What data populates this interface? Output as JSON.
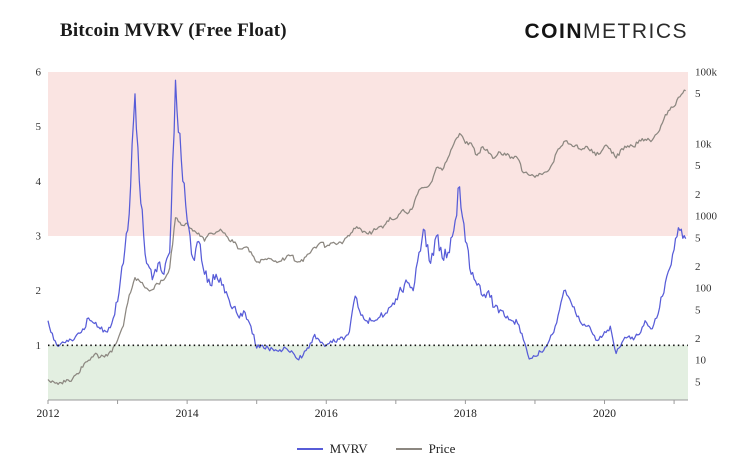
{
  "header": {
    "title": "Bitcoin MVRV (Free Float)",
    "logo_bold": "COIN",
    "logo_light": "METRICS"
  },
  "legend": [
    {
      "label": "MVRV",
      "color": "#575cd8"
    },
    {
      "label": "Price",
      "color": "#8c8780"
    }
  ],
  "chart_data": {
    "type": "line",
    "title": "Bitcoin MVRV (Free Float)",
    "x_domain": [
      2012,
      2021.2
    ],
    "x_ticks": [
      2012,
      2014,
      2016,
      2018,
      2020
    ],
    "x": {
      "start": 2012,
      "step": 0.0833333,
      "count": 111,
      "unit": "decimal-year, monthly"
    },
    "left_axis": {
      "range": [
        0,
        6
      ],
      "ticks": [
        1,
        2,
        3,
        4,
        5,
        6
      ]
    },
    "right_axis": {
      "scale": "log",
      "range": [
        2.8,
        100000
      ],
      "ticks": [
        {
          "v": 5,
          "label": "5"
        },
        {
          "v": 10,
          "label": "10"
        },
        {
          "v": 20,
          "label": "2"
        },
        {
          "v": 50,
          "label": "5"
        },
        {
          "v": 100,
          "label": "100"
        },
        {
          "v": 200,
          "label": "2"
        },
        {
          "v": 500,
          "label": "5"
        },
        {
          "v": 1000,
          "label": "1000"
        },
        {
          "v": 2000,
          "label": "2"
        },
        {
          "v": 5000,
          "label": "5"
        },
        {
          "v": 10000,
          "label": "10k"
        },
        {
          "v": 50000,
          "label": "5"
        },
        {
          "v": 100000,
          "label": "100k"
        }
      ]
    },
    "bands": [
      {
        "from": 3,
        "to": 6,
        "color": "#fae4e2"
      },
      {
        "from": 0,
        "to": 1,
        "color": "#e3efe1"
      }
    ],
    "reference_line": {
      "value": 1,
      "style": "dotted",
      "color": "#111111"
    },
    "series": [
      {
        "name": "MVRV",
        "axis": "left",
        "color": "#575cd8",
        "values": [
          1.45,
          1.1,
          1.0,
          1.05,
          1.1,
          1.2,
          1.3,
          1.5,
          1.4,
          1.3,
          1.25,
          1.4,
          1.8,
          2.5,
          3.4,
          5.6,
          3.6,
          2.5,
          2.2,
          2.5,
          2.3,
          2.7,
          5.85,
          4.4,
          3.3,
          2.6,
          2.9,
          2.3,
          2.1,
          2.3,
          2.1,
          1.9,
          1.7,
          1.5,
          1.6,
          1.35,
          0.95,
          1.0,
          0.95,
          0.9,
          0.92,
          0.95,
          0.9,
          0.75,
          0.82,
          0.95,
          1.2,
          1.05,
          1.0,
          1.05,
          1.12,
          1.1,
          1.25,
          1.9,
          1.55,
          1.45,
          1.45,
          1.5,
          1.55,
          1.7,
          1.85,
          2.0,
          2.15,
          2.0,
          2.7,
          3.1,
          2.5,
          3.0,
          2.6,
          2.7,
          3.1,
          3.9,
          2.9,
          2.3,
          2.1,
          1.9,
          2.0,
          1.7,
          1.65,
          1.5,
          1.45,
          1.4,
          1.1,
          0.75,
          0.8,
          0.88,
          0.98,
          1.2,
          1.55,
          2.0,
          1.85,
          1.6,
          1.4,
          1.35,
          1.2,
          1.1,
          1.25,
          1.35,
          0.85,
          1.05,
          1.15,
          1.1,
          1.2,
          1.45,
          1.3,
          1.5,
          1.9,
          2.35,
          2.75,
          3.1,
          2.95
        ]
      },
      {
        "name": "Price",
        "axis": "right",
        "color": "#8c8780",
        "values": [
          5.4,
          5.0,
          4.9,
          5.0,
          5.1,
          6.5,
          8,
          10,
          12,
          11,
          12,
          13,
          19,
          30,
          80,
          140,
          120,
          100,
          95,
          115,
          130,
          190,
          950,
          750,
          800,
          620,
          580,
          450,
          580,
          600,
          620,
          510,
          430,
          350,
          370,
          320,
          230,
          250,
          260,
          235,
          235,
          260,
          285,
          230,
          235,
          300,
          370,
          430,
          380,
          425,
          415,
          450,
          530,
          670,
          655,
          575,
          610,
          700,
          740,
          960,
          920,
          1180,
          1080,
          1350,
          2300,
          2500,
          2850,
          4700,
          4350,
          6450,
          10000,
          14000,
          10200,
          10300,
          7000,
          9200,
          7500,
          6400,
          7700,
          7000,
          6600,
          6350,
          4000,
          3700,
          3450,
          3850,
          4100,
          5300,
          8500,
          10800,
          10000,
          9600,
          8300,
          9250,
          7550,
          7200,
          9350,
          8550,
          6400,
          8650,
          9450,
          9150,
          11350,
          11650,
          10800,
          13800,
          19700,
          29000,
          33100,
          45200,
          55000
        ]
      }
    ]
  }
}
